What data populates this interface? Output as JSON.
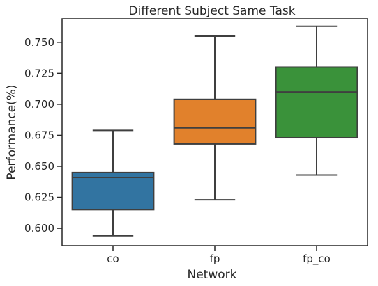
{
  "chart_data": {
    "type": "box",
    "title": "Different Subject Same Task",
    "xlabel": "Network",
    "ylabel": "Performance(%)",
    "ylim": [
      0.586,
      0.769
    ],
    "yticks": [
      0.6,
      0.625,
      0.65,
      0.675,
      0.7,
      0.725,
      0.75
    ],
    "ytick_labels": [
      "0.600",
      "0.625",
      "0.650",
      "0.675",
      "0.700",
      "0.725",
      "0.750"
    ],
    "grid": false,
    "categories": [
      "co",
      "fp",
      "fp_co"
    ],
    "boxes": [
      {
        "category": "co",
        "whisker_low": 0.594,
        "q1": 0.615,
        "median": 0.641,
        "q3": 0.645,
        "whisker_high": 0.679,
        "color": "#3274a1"
      },
      {
        "category": "fp",
        "whisker_low": 0.623,
        "q1": 0.668,
        "median": 0.681,
        "q3": 0.704,
        "whisker_high": 0.755,
        "color": "#e1812c"
      },
      {
        "category": "fp_co",
        "whisker_low": 0.643,
        "q1": 0.673,
        "median": 0.71,
        "q3": 0.73,
        "whisker_high": 0.763,
        "color": "#3a923a"
      }
    ]
  }
}
